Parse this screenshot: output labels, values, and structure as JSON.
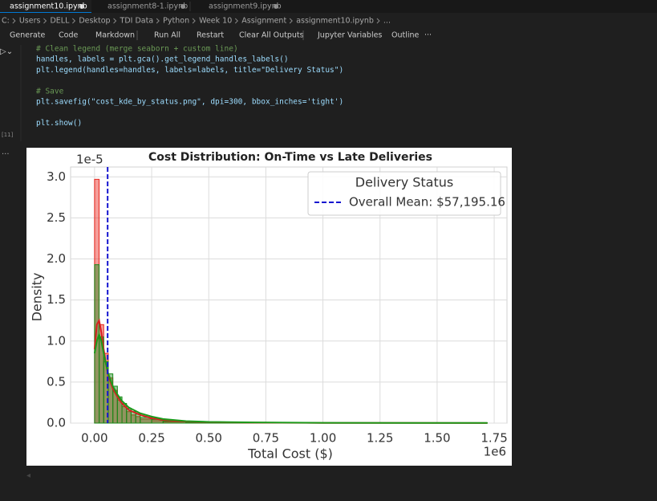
{
  "tabs": [
    "assignment10.ipynb",
    "assignment8-1.ipynb",
    "assignment9.ipynb"
  ],
  "breadcrumb": [
    "C:",
    "Users",
    "DELL",
    "Desktop",
    "TDI Data",
    "Python",
    "Week 10",
    "Assignment",
    "assignment10.ipynb",
    "..."
  ],
  "toolbar": [
    "Generate",
    "Code",
    "Markdown",
    "Run All",
    "Restart",
    "Clear All Outputs",
    "Jupyter Variables",
    "Outline",
    "···"
  ],
  "code": [
    [
      "# Clean legend (merge seaborn + custom line)",
      "handles, labels = plt.gca().get_legend_handles_labels()",
      "plt.legend(handles=handles, labels=labels, title=\"Delivery Status\")"
    ],
    [
      "# Save",
      "plt.savefig(\"cost_kde_by_status.png\", dpi=300, bbox_inches='tight')"
    ],
    [
      "plt.show()"
    ]
  ],
  "execution_count": "[11]",
  "output_marker": "...",
  "chart_data": {
    "type": "histogram",
    "title": "Cost Distribution: On-Time vs Late Deliveries",
    "xlabel": "Total Cost ($)",
    "ylabel": "Density",
    "x_offset_label": "1e6",
    "y_offset_label": "1e-5",
    "bins": [
      0,
      0.02,
      0.04,
      0.06,
      0.08,
      0.1,
      0.12,
      0.14,
      0.16,
      0.18,
      0.2,
      0.25,
      0.3,
      0.4,
      0.6,
      1.72
    ],
    "series": [
      {
        "color": "#e8251c",
        "values": [
          2.97,
          1.2,
          0.85,
          0.55,
          0.4,
          0.28,
          0.2,
          0.14,
          0.1,
          0.08,
          0.05,
          0.03,
          0.015,
          0.006,
          0.002
        ]
      },
      {
        "color": "#1a8a1a",
        "values": [
          1.93,
          1.05,
          0.75,
          0.6,
          0.45,
          0.32,
          0.24,
          0.18,
          0.14,
          0.11,
          0.07,
          0.045,
          0.025,
          0.01,
          0.003
        ]
      }
    ],
    "kde": [
      {
        "color": "#d62020",
        "x": [
          0,
          0.01,
          0.02,
          0.03,
          0.04,
          0.05,
          0.06,
          0.08,
          0.1,
          0.12,
          0.15,
          0.2,
          0.25,
          0.3,
          0.4,
          0.5,
          0.7,
          1.0,
          1.72
        ],
        "values": [
          0.9,
          1.2,
          1.25,
          1.1,
          0.9,
          0.72,
          0.58,
          0.42,
          0.32,
          0.24,
          0.16,
          0.1,
          0.06,
          0.04,
          0.02,
          0.012,
          0.006,
          0.003,
          0.001
        ]
      },
      {
        "color": "#1a9a1a",
        "x": [
          0,
          0.01,
          0.02,
          0.03,
          0.04,
          0.05,
          0.06,
          0.08,
          0.1,
          0.12,
          0.15,
          0.2,
          0.25,
          0.3,
          0.4,
          0.5,
          0.7,
          1.0,
          1.72
        ],
        "values": [
          0.85,
          1.0,
          1.08,
          1.0,
          0.85,
          0.72,
          0.6,
          0.45,
          0.35,
          0.27,
          0.19,
          0.12,
          0.08,
          0.05,
          0.025,
          0.015,
          0.008,
          0.004,
          0.002
        ]
      }
    ],
    "mean_line": {
      "value": 0.05719516,
      "color": "#1515d0",
      "label": "Overall Mean: $57,195.16"
    },
    "legend_title": "Delivery Status",
    "legend_position": "upper right",
    "xlim": [
      -0.105,
      1.806
    ],
    "ylim": [
      0,
      3.12
    ],
    "xticks": [
      {
        "value": 0,
        "label": "0.00"
      },
      {
        "value": 0.25,
        "label": "0.25"
      },
      {
        "value": 0.5,
        "label": "0.50"
      },
      {
        "value": 0.75,
        "label": "0.75"
      },
      {
        "value": 1,
        "label": "1.00"
      },
      {
        "value": 1.25,
        "label": "1.25"
      },
      {
        "value": 1.5,
        "label": "1.50"
      },
      {
        "value": 1.75,
        "label": "1.75"
      }
    ],
    "yticks": [
      {
        "value": 0,
        "label": "0.0"
      },
      {
        "value": 0.5,
        "label": "0.5"
      },
      {
        "value": 1,
        "label": "1.0"
      },
      {
        "value": 1.5,
        "label": "1.5"
      },
      {
        "value": 2,
        "label": "2.0"
      },
      {
        "value": 2.5,
        "label": "2.5"
      },
      {
        "value": 3,
        "label": "3.0"
      }
    ],
    "grid": true
  }
}
